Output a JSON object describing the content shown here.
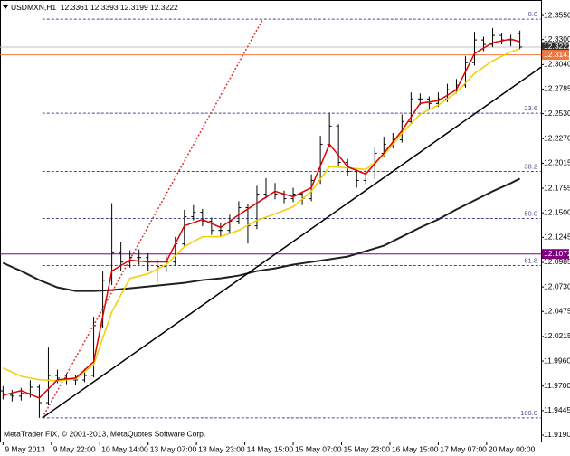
{
  "chart_data": {
    "type": "ohlc",
    "title": "USDMXN,H1  12.3361 12.3393 12.3199 12.3222",
    "copyright": "MetaTrader FIX, © 2001-2013, MetaQuotes Software Corp.",
    "color": "#000000",
    "x": [
      0,
      3,
      6,
      9,
      12,
      15,
      18,
      21,
      24,
      27,
      30,
      33,
      36,
      39,
      42,
      45,
      48,
      51,
      54,
      57,
      60,
      63,
      66,
      69,
      72,
      75,
      78,
      81,
      84,
      87,
      90,
      93,
      96,
      99,
      102,
      105,
      108,
      111,
      114,
      117,
      120,
      123,
      126,
      129,
      132,
      135,
      138,
      141,
      144,
      147,
      150,
      153,
      156,
      159,
      162,
      165,
      168,
      171
    ],
    "open": [
      11.965,
      11.9604,
      11.9595,
      11.9623,
      11.9689,
      11.9528,
      11.981,
      11.9782,
      11.9763,
      11.9763,
      11.981,
      12.0328,
      12.0799,
      12.1082,
      12.0988,
      12.1035,
      12.1035,
      12.0988,
      12.0941,
      12.0988,
      12.1176,
      12.1459,
      12.1506,
      12.1412,
      12.1317,
      12.1317,
      12.1412,
      12.1553,
      12.1365,
      12.1694,
      12.1788,
      12.1694,
      12.1647,
      12.1694,
      12.1647,
      12.1836,
      12.2212,
      12.2401,
      12.2024,
      12.193,
      12.1836,
      12.1883,
      12.2118,
      12.2212,
      12.2259,
      12.2448,
      12.2683,
      12.2683,
      12.2636,
      12.2683,
      12.2778,
      12.2825,
      12.306,
      12.3296,
      12.3249,
      12.3343,
      12.3296,
      12.3361
    ],
    "high": [
      11.97,
      11.966,
      11.968,
      11.976,
      11.972,
      12.01,
      11.987,
      11.983,
      11.982,
      11.988,
      12.042,
      12.09,
      12.16,
      12.12,
      12.111,
      12.112,
      12.108,
      12.102,
      12.106,
      12.125,
      12.153,
      12.158,
      12.154,
      12.145,
      12.139,
      12.148,
      12.162,
      12.159,
      12.178,
      12.186,
      12.181,
      12.173,
      12.176,
      12.172,
      12.19,
      12.23,
      12.254,
      12.242,
      12.206,
      12.195,
      12.194,
      12.218,
      12.229,
      12.233,
      12.252,
      12.275,
      12.274,
      12.271,
      12.275,
      12.284,
      12.289,
      12.313,
      12.338,
      12.333,
      12.342,
      12.337,
      12.335,
      12.3393
    ],
    "low": [
      11.956,
      11.954,
      11.955,
      11.958,
      11.937,
      11.95,
      11.973,
      11.972,
      11.971,
      11.974,
      11.979,
      12.03,
      12.075,
      12.09,
      12.093,
      12.096,
      12.09,
      12.078,
      12.088,
      12.095,
      12.115,
      12.142,
      12.136,
      12.127,
      12.125,
      12.128,
      12.138,
      12.118,
      12.133,
      12.165,
      12.164,
      12.16,
      12.161,
      12.158,
      12.162,
      12.18,
      12.218,
      12.198,
      12.188,
      12.176,
      12.18,
      12.185,
      12.208,
      12.217,
      12.223,
      12.242,
      12.262,
      12.258,
      12.26,
      12.265,
      12.274,
      12.28,
      12.303,
      12.318,
      12.322,
      12.325,
      12.323,
      12.3199
    ],
    "close": [
      11.9604,
      11.9595,
      11.9623,
      11.9689,
      11.9528,
      11.981,
      11.9782,
      11.9763,
      11.9763,
      11.981,
      12.0328,
      12.0799,
      12.1082,
      12.0988,
      12.1035,
      12.1035,
      12.0988,
      12.0941,
      12.0988,
      12.1176,
      12.1459,
      12.1506,
      12.1412,
      12.1317,
      12.1317,
      12.1412,
      12.1553,
      12.1365,
      12.1694,
      12.1788,
      12.1694,
      12.1647,
      12.1694,
      12.1647,
      12.1836,
      12.2212,
      12.2401,
      12.2024,
      12.193,
      12.1836,
      12.1883,
      12.2118,
      12.2212,
      12.2259,
      12.2448,
      12.2683,
      12.2683,
      12.2636,
      12.2683,
      12.2778,
      12.2825,
      12.306,
      12.3296,
      12.3249,
      12.3343,
      12.3296,
      12.3296,
      12.3222
    ],
    "xlim": [
      -1,
      178
    ],
    "xticks": [
      {
        "value": 0,
        "label": "9 May 2013"
      },
      {
        "value": 16,
        "label": "9 May 22:00"
      },
      {
        "value": 32,
        "label": "10 May 14:00"
      },
      {
        "value": 48,
        "label": "13 May 07:00"
      },
      {
        "value": 64,
        "label": "13 May 23:00"
      },
      {
        "value": 80,
        "label": "14 May 15:00"
      },
      {
        "value": 96,
        "label": "15 May 07:00"
      },
      {
        "value": 112,
        "label": "15 May 23:00"
      },
      {
        "value": 128,
        "label": "16 May 15:00"
      },
      {
        "value": 144,
        "label": "17 May 07:00"
      },
      {
        "value": 160,
        "label": "20 May 00:00"
      }
    ],
    "ylim": [
      11.9124,
      12.3701
    ],
    "yticks": [
      {
        "value": 12.355,
        "label": "12.3550"
      },
      {
        "value": 12.33,
        "label": "12.3300"
      },
      {
        "value": 12.304,
        "label": "12.3040"
      },
      12.2785,
      {
        "value": 12.253,
        "label": "12.2530"
      },
      {
        "value": 12.227,
        "label": "12.2270"
      },
      12.2015,
      12.1755,
      {
        "value": 12.15,
        "label": "12.1500"
      },
      12.1245,
      12.0985,
      {
        "value": 12.073,
        "label": "12.0730"
      },
      12.0475,
      12.0215,
      {
        "value": 11.996,
        "label": "11.9960"
      },
      {
        "value": 11.97,
        "label": "11.9700"
      },
      11.9445,
      {
        "value": 11.919,
        "label": "11.9190"
      }
    ],
    "moving_averages": [
      {
        "color": "#202020",
        "width": 2,
        "x": [
          0,
          6,
          12,
          18,
          24,
          30,
          36,
          42,
          48,
          54,
          60,
          66,
          72,
          78,
          84,
          90,
          96,
          102,
          108,
          114,
          120,
          126,
          132,
          138,
          144,
          150,
          156,
          162,
          168,
          171
        ],
        "values": [
          12.0979,
          12.0895,
          12.0801,
          12.0725,
          12.0688,
          12.0688,
          12.0697,
          12.0716,
          12.0735,
          12.0753,
          12.0772,
          12.0801,
          12.0819,
          12.0848,
          12.0895,
          12.0923,
          12.0961,
          12.0989,
          12.1017,
          12.1045,
          12.1102,
          12.1158,
          12.1252,
          12.1347,
          12.1431,
          12.1535,
          12.1629,
          12.1723,
          12.1808,
          12.1855
        ]
      },
      {
        "color": "#f0d000",
        "width": 1.5,
        "x": [
          0,
          6,
          12,
          18,
          24,
          30,
          36,
          42,
          48,
          54,
          60,
          66,
          72,
          78,
          84,
          90,
          96,
          102,
          108,
          114,
          120,
          126,
          132,
          138,
          144,
          150,
          156,
          162,
          168,
          171
        ],
        "values": [
          11.9887,
          11.9802,
          11.9765,
          11.9755,
          11.9774,
          11.9925,
          12.0471,
          12.0819,
          12.0866,
          12.0961,
          12.1149,
          12.1252,
          12.1252,
          12.1318,
          12.1422,
          12.1488,
          12.1563,
          12.1723,
          12.1978,
          12.1968,
          12.1949,
          12.21,
          12.2326,
          12.2524,
          12.2618,
          12.275,
          12.2947,
          12.3079,
          12.3173,
          12.3202
        ]
      },
      {
        "color": "#e00000",
        "width": 1.5,
        "x": [
          0,
          6,
          12,
          18,
          24,
          30,
          36,
          42,
          48,
          54,
          60,
          66,
          72,
          78,
          84,
          90,
          96,
          102,
          108,
          114,
          120,
          126,
          132,
          138,
          144,
          150,
          156,
          162,
          168,
          171
        ],
        "values": [
          11.9604,
          11.9652,
          11.9576,
          11.9765,
          11.9783,
          11.9953,
          12.0895,
          12.1008,
          12.0989,
          12.0989,
          12.1365,
          12.1431,
          12.1347,
          12.1478,
          12.1601,
          12.1723,
          12.1667,
          12.1761,
          12.2213,
          12.1978,
          12.1902,
          12.2119,
          12.2354,
          12.2637,
          12.2665,
          12.2778,
          12.3155,
          12.3268,
          12.3305,
          12.3277
        ]
      }
    ],
    "trend_lines": [
      {
        "color": "#000000",
        "dash": "none",
        "x": [
          13,
          178
        ],
        "values": [
          11.9369,
          12.3013
        ]
      },
      {
        "color": "#e03030",
        "dash": "2,2",
        "x": [
          13,
          86
        ],
        "values": [
          11.9369,
          12.3512
        ]
      }
    ],
    "fibonacci": {
      "color": "#4a4a8a",
      "levels": [
        {
          "label": "0.0",
          "value": 12.3512
        },
        {
          "label": "23.6",
          "value": 12.2534
        },
        {
          "label": "38.2",
          "value": 12.1929
        },
        {
          "label": "50.0",
          "value": 12.1441
        },
        {
          "label": "61.8",
          "value": 12.0952
        },
        {
          "label": "100.0",
          "value": 11.9369
        }
      ]
    },
    "price_lines": [
      {
        "value": 12.3222,
        "color": "#c0c0c0",
        "label_bg": "#303030",
        "label_fg": "#ffffff"
      },
      {
        "value": 12.3141,
        "color": "#f07840",
        "label_bg": "#f07840",
        "label_fg": "#ffffff"
      },
      {
        "value": 12.1072,
        "color": "#800080",
        "label_bg": "#800080",
        "label_fg": "#ffffff"
      }
    ]
  }
}
